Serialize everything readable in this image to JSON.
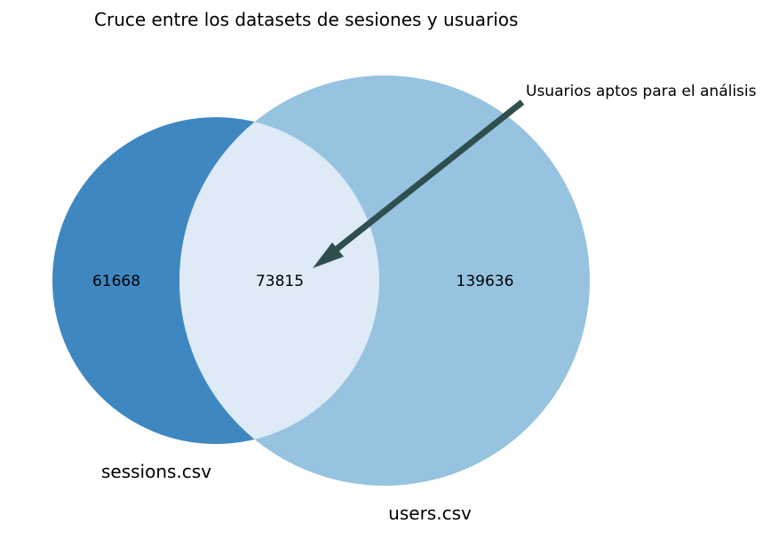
{
  "chart_data": {
    "type": "venn",
    "title": "Cruce entre los datasets de sesiones y usuarios",
    "sets": [
      {
        "name": "sessions.csv",
        "only": 61668,
        "color": "#3f87c0"
      },
      {
        "name": "users.csv",
        "only": 139636,
        "color": "#96c3e0"
      }
    ],
    "intersection": {
      "value": 73815,
      "color": "#deeaf6"
    },
    "annotation": {
      "text": "Usuarios aptos para el análisis",
      "arrow_color": "#2f4f4f",
      "points_to": "intersection"
    }
  }
}
